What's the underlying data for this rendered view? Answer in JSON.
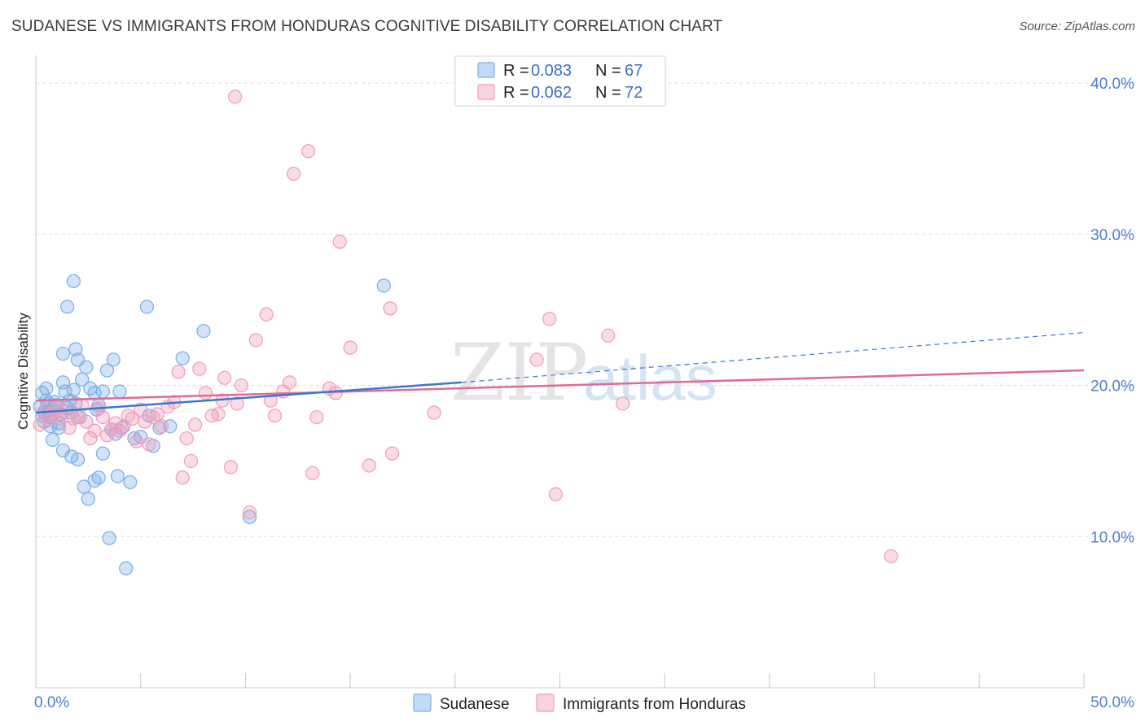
{
  "title": "SUDANESE VS IMMIGRANTS FROM HONDURAS COGNITIVE DISABILITY CORRELATION CHART",
  "source": "Source: ZipAtlas.com",
  "watermark": {
    "zip": "ZIP",
    "atlas": "atlas"
  },
  "legend": {
    "rows": [
      {
        "r_label": "R = ",
        "r_value": "0.083",
        "n_label": "N = ",
        "n_value": "67"
      },
      {
        "r_label": "R = ",
        "r_value": "0.062",
        "n_label": "N = ",
        "n_value": "72"
      }
    ]
  },
  "chart_data": {
    "type": "scatter",
    "title": "SUDANESE VS IMMIGRANTS FROM HONDURAS COGNITIVE DISABILITY CORRELATION CHART",
    "xlabel": "",
    "ylabel": "Cognitive Disability",
    "xlim": [
      0,
      50
    ],
    "ylim": [
      0,
      42
    ],
    "x_tick_labels": [
      "0.0%",
      "50.0%"
    ],
    "y_ticks": [
      10,
      20,
      30,
      40
    ],
    "y_tick_labels": [
      "10.0%",
      "20.0%",
      "30.0%",
      "40.0%"
    ],
    "grid": true,
    "legend_position": "top-center",
    "series": [
      {
        "name": "Sudanese",
        "color": "#7aaee8",
        "line_color": "#3a78d0",
        "r": 0.083,
        "n": 67,
        "trend": {
          "x0": 0,
          "y0": 18.2,
          "x1": 20.3,
          "y1": 20.2,
          "dash_x1": 50,
          "dash_y1": 23.5
        },
        "points": [
          [
            0.2,
            18.6
          ],
          [
            0.3,
            19.5
          ],
          [
            0.4,
            18.2
          ],
          [
            0.5,
            19.0
          ],
          [
            0.6,
            18.8
          ],
          [
            0.7,
            17.9
          ],
          [
            0.8,
            18.4
          ],
          [
            0.9,
            18.9
          ],
          [
            0.3,
            18.0
          ],
          [
            0.4,
            17.6
          ],
          [
            0.5,
            19.8
          ],
          [
            0.6,
            18.3
          ],
          [
            0.7,
            17.3
          ],
          [
            1.0,
            18.7
          ],
          [
            1.1,
            17.5
          ],
          [
            1.2,
            18.1
          ],
          [
            1.3,
            20.2
          ],
          [
            1.4,
            19.6
          ],
          [
            1.5,
            18.5
          ],
          [
            1.6,
            19.0
          ],
          [
            1.7,
            18.2
          ],
          [
            1.8,
            19.7
          ],
          [
            1.9,
            18.8
          ],
          [
            2.0,
            21.7
          ],
          [
            2.2,
            20.4
          ],
          [
            2.4,
            21.2
          ],
          [
            2.6,
            19.8
          ],
          [
            2.8,
            19.5
          ],
          [
            3.0,
            18.7
          ],
          [
            3.2,
            19.6
          ],
          [
            3.4,
            21.0
          ],
          [
            3.6,
            17.1
          ],
          [
            3.8,
            16.8
          ],
          [
            4.0,
            19.6
          ],
          [
            1.3,
            15.7
          ],
          [
            1.7,
            15.3
          ],
          [
            2.0,
            15.1
          ],
          [
            2.3,
            13.3
          ],
          [
            2.5,
            12.5
          ],
          [
            2.8,
            13.7
          ],
          [
            3.0,
            13.9
          ],
          [
            3.2,
            15.5
          ],
          [
            3.5,
            9.9
          ],
          [
            3.9,
            14.0
          ],
          [
            4.3,
            7.9
          ],
          [
            4.5,
            13.6
          ],
          [
            4.7,
            16.5
          ],
          [
            5.0,
            16.6
          ],
          [
            5.3,
            25.2
          ],
          [
            1.5,
            25.2
          ],
          [
            1.8,
            26.9
          ],
          [
            1.3,
            22.1
          ],
          [
            1.9,
            22.4
          ],
          [
            3.7,
            21.7
          ],
          [
            5.4,
            18.0
          ],
          [
            5.6,
            16.0
          ],
          [
            5.9,
            17.2
          ],
          [
            6.4,
            17.3
          ],
          [
            7.0,
            21.8
          ],
          [
            8.0,
            23.6
          ],
          [
            10.2,
            11.3
          ],
          [
            16.6,
            26.6
          ],
          [
            0.8,
            16.4
          ],
          [
            1.1,
            17.2
          ],
          [
            2.1,
            17.9
          ],
          [
            2.9,
            18.4
          ],
          [
            4.1,
            17.2
          ]
        ]
      },
      {
        "name": "Immigrants from Honduras",
        "color": "#f29bb7",
        "line_color": "#e06a97",
        "r": 0.062,
        "n": 72,
        "trend": {
          "x0": 0,
          "y0": 19.0,
          "x1": 50,
          "y1": 21.0
        },
        "points": [
          [
            0.2,
            17.4
          ],
          [
            0.4,
            18.3
          ],
          [
            0.6,
            17.7
          ],
          [
            0.8,
            18.1
          ],
          [
            1.0,
            18.5
          ],
          [
            1.2,
            17.8
          ],
          [
            1.4,
            18.3
          ],
          [
            1.6,
            17.2
          ],
          [
            1.8,
            17.8
          ],
          [
            2.0,
            17.9
          ],
          [
            2.2,
            18.7
          ],
          [
            2.4,
            17.6
          ],
          [
            2.6,
            16.5
          ],
          [
            2.8,
            17.0
          ],
          [
            3.0,
            18.5
          ],
          [
            3.2,
            17.9
          ],
          [
            3.4,
            16.7
          ],
          [
            3.6,
            17.1
          ],
          [
            3.8,
            17.5
          ],
          [
            4.0,
            17.0
          ],
          [
            4.2,
            17.3
          ],
          [
            4.4,
            18.0
          ],
          [
            4.6,
            17.8
          ],
          [
            4.8,
            16.3
          ],
          [
            5.0,
            18.4
          ],
          [
            5.2,
            17.6
          ],
          [
            5.4,
            16.1
          ],
          [
            5.6,
            17.9
          ],
          [
            5.8,
            18.1
          ],
          [
            6.0,
            17.3
          ],
          [
            6.3,
            18.6
          ],
          [
            6.6,
            18.9
          ],
          [
            6.8,
            20.9
          ],
          [
            7.0,
            13.9
          ],
          [
            7.2,
            16.5
          ],
          [
            7.4,
            15.0
          ],
          [
            7.6,
            17.4
          ],
          [
            7.8,
            21.1
          ],
          [
            8.1,
            19.5
          ],
          [
            8.4,
            18.0
          ],
          [
            8.7,
            18.1
          ],
          [
            9.0,
            20.5
          ],
          [
            9.3,
            14.6
          ],
          [
            9.6,
            18.8
          ],
          [
            9.8,
            20.0
          ],
          [
            10.2,
            11.6
          ],
          [
            10.5,
            23.0
          ],
          [
            11.0,
            24.7
          ],
          [
            11.2,
            19.0
          ],
          [
            11.4,
            18.0
          ],
          [
            11.8,
            19.6
          ],
          [
            12.1,
            20.2
          ],
          [
            12.3,
            34.0
          ],
          [
            13.0,
            35.5
          ],
          [
            13.2,
            14.2
          ],
          [
            13.4,
            17.9
          ],
          [
            14.0,
            19.8
          ],
          [
            14.3,
            19.5
          ],
          [
            14.5,
            29.5
          ],
          [
            15.0,
            22.5
          ],
          [
            15.9,
            14.7
          ],
          [
            16.9,
            25.1
          ],
          [
            17.0,
            15.5
          ],
          [
            19.0,
            18.2
          ],
          [
            9.5,
            39.1
          ],
          [
            23.9,
            21.7
          ],
          [
            24.5,
            24.4
          ],
          [
            24.8,
            12.8
          ],
          [
            27.3,
            23.3
          ],
          [
            28.0,
            18.8
          ],
          [
            40.8,
            8.7
          ],
          [
            8.9,
            19.0
          ]
        ]
      }
    ]
  }
}
